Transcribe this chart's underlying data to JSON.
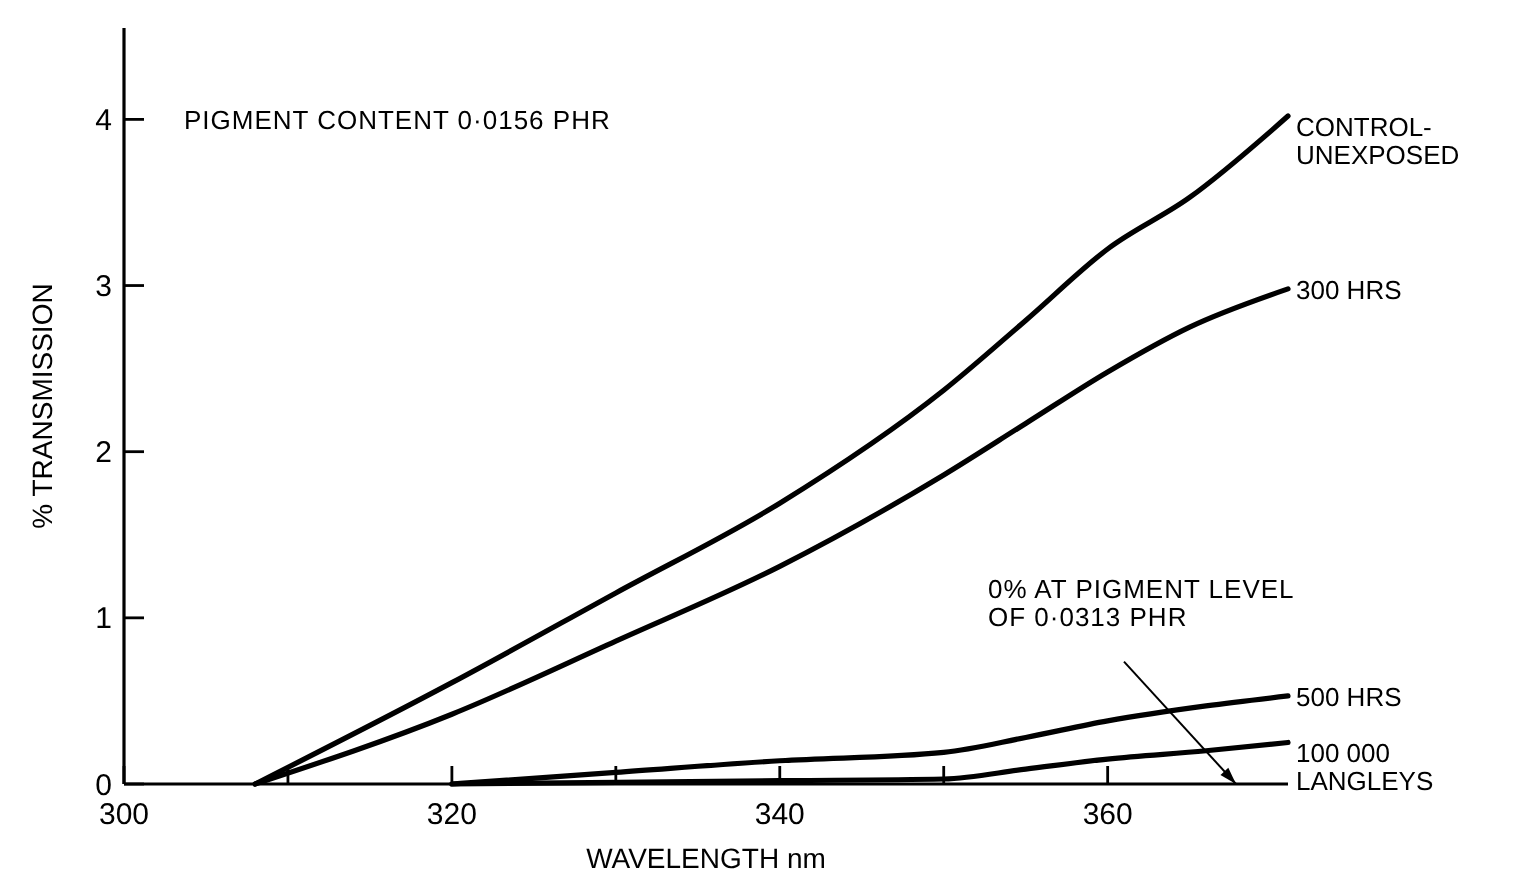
{
  "chart_data": {
    "type": "line",
    "xlabel": "WAVELENGTH nm",
    "ylabel": "% TRANSMISSION",
    "xlim": [
      300,
      371
    ],
    "ylim": [
      0,
      4.55
    ],
    "xticks": [
      300,
      {
        "value": 310,
        "label": null
      },
      320,
      {
        "value": 330,
        "label": null
      },
      340,
      {
        "value": 350,
        "label": null
      },
      360
    ],
    "yticks": [
      0,
      1,
      2,
      3,
      4
    ],
    "grid": false,
    "marker": "none",
    "line_style": "solid",
    "annotations": [
      "PIGMENT CONTENT 0·0156 PHR",
      "0% AT PIGMENT LEVEL OF 0·0313 PHR"
    ],
    "series": [
      {
        "name": "CONTROL- UNEXPOSED",
        "color": "#000000",
        "x": [
          308,
          320,
          330,
          340,
          350,
          355,
          360,
          365,
          371
        ],
        "values": [
          0,
          0.61,
          1.15,
          1.69,
          2.37,
          2.79,
          3.22,
          3.53,
          4.02
        ]
      },
      {
        "name": "300 HRS",
        "color": "#000000",
        "x": [
          308,
          320,
          330,
          340,
          350,
          355,
          360,
          365,
          371
        ],
        "values": [
          0,
          0.42,
          0.86,
          1.31,
          1.86,
          2.17,
          2.48,
          2.75,
          2.98
        ]
      },
      {
        "name": "500 HRS",
        "color": "#000000",
        "x": [
          320,
          330,
          340,
          350,
          355,
          360,
          366,
          371
        ],
        "values": [
          0,
          0.07,
          0.14,
          0.19,
          0.28,
          0.38,
          0.47,
          0.53
        ]
      },
      {
        "name": "100 000 LANGLEYS",
        "color": "#000000",
        "x": [
          320,
          340,
          350,
          355,
          360,
          366,
          371
        ],
        "values": [
          0,
          0.02,
          0.03,
          0.09,
          0.15,
          0.2,
          0.25
        ]
      }
    ]
  }
}
